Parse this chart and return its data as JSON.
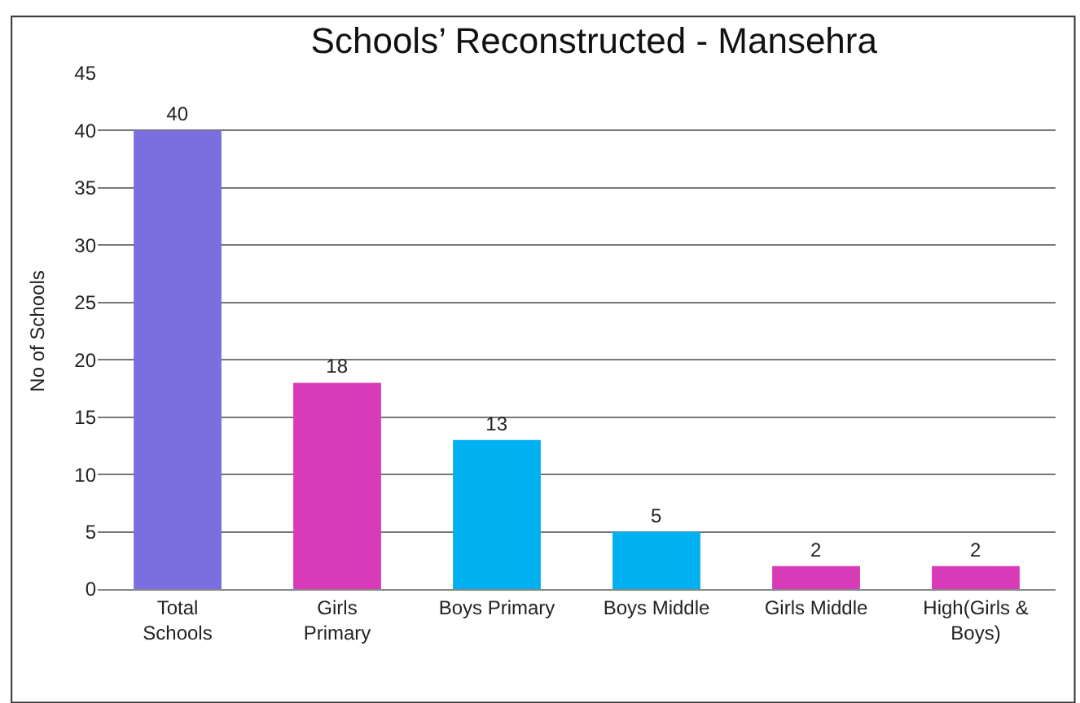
{
  "chart_data": {
    "type": "bar",
    "title": "Schools’ Reconstructed - Mansehra",
    "ylabel": "No of Schools",
    "categories": [
      "Total Schools",
      "Girls Primary",
      "Boys Primary",
      "Boys Middle",
      "Girls Middle",
      "High(Girls & Boys)"
    ],
    "values": [
      40,
      18,
      13,
      5,
      2,
      2
    ],
    "colors": [
      "#7a6ee0",
      "#d93ab7",
      "#00b0f0",
      "#00b0f0",
      "#d93ab7",
      "#d93ab7"
    ],
    "ylim": [
      0,
      45
    ],
    "yticks": [
      0,
      5,
      10,
      15,
      20,
      25,
      30,
      35,
      40,
      45
    ],
    "grid": "y",
    "data_labels": true,
    "legend": false
  }
}
